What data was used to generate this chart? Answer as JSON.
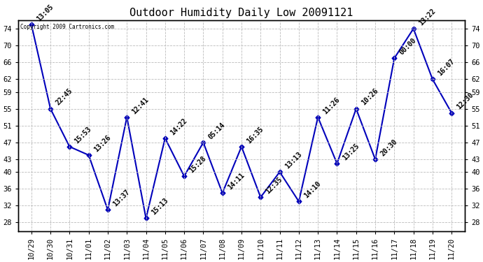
{
  "title": "Outdoor Humidity Daily Low 20091121",
  "copyright": "Copyright 2009 Cartronics.com",
  "x_ticks": [
    "10/29",
    "10/30",
    "10/31",
    "11/01",
    "11/02",
    "11/03",
    "11/04",
    "11/05",
    "11/06",
    "11/07",
    "11/08",
    "11/09",
    "11/10",
    "11/11",
    "11/12",
    "11/13",
    "11/14",
    "11/15",
    "11/16",
    "11/17",
    "11/18",
    "11/19",
    "11/20"
  ],
  "y_values": [
    75,
    55,
    46,
    44,
    31,
    53,
    29,
    48,
    39,
    47,
    35,
    46,
    34,
    40,
    33,
    53,
    42,
    55,
    43,
    67,
    74,
    62,
    54
  ],
  "time_labels": [
    "13:05",
    "22:45",
    "15:53",
    "13:26",
    "13:37",
    "12:41",
    "15:13",
    "14:22",
    "15:28",
    "05:14",
    "14:11",
    "16:35",
    "12:35",
    "13:13",
    "14:10",
    "11:26",
    "13:25",
    "10:26",
    "20:30",
    "00:00",
    "13:22",
    "16:07",
    "12:30"
  ],
  "ylim": [
    26,
    76
  ],
  "yticks": [
    28,
    32,
    36,
    40,
    43,
    47,
    51,
    55,
    59,
    62,
    66,
    70,
    74
  ],
  "line_color": "#0000bb",
  "background_color": "#ffffff",
  "grid_color": "#bbbbbb",
  "title_fontsize": 11,
  "label_fontsize": 7,
  "tick_fontsize": 7.5
}
